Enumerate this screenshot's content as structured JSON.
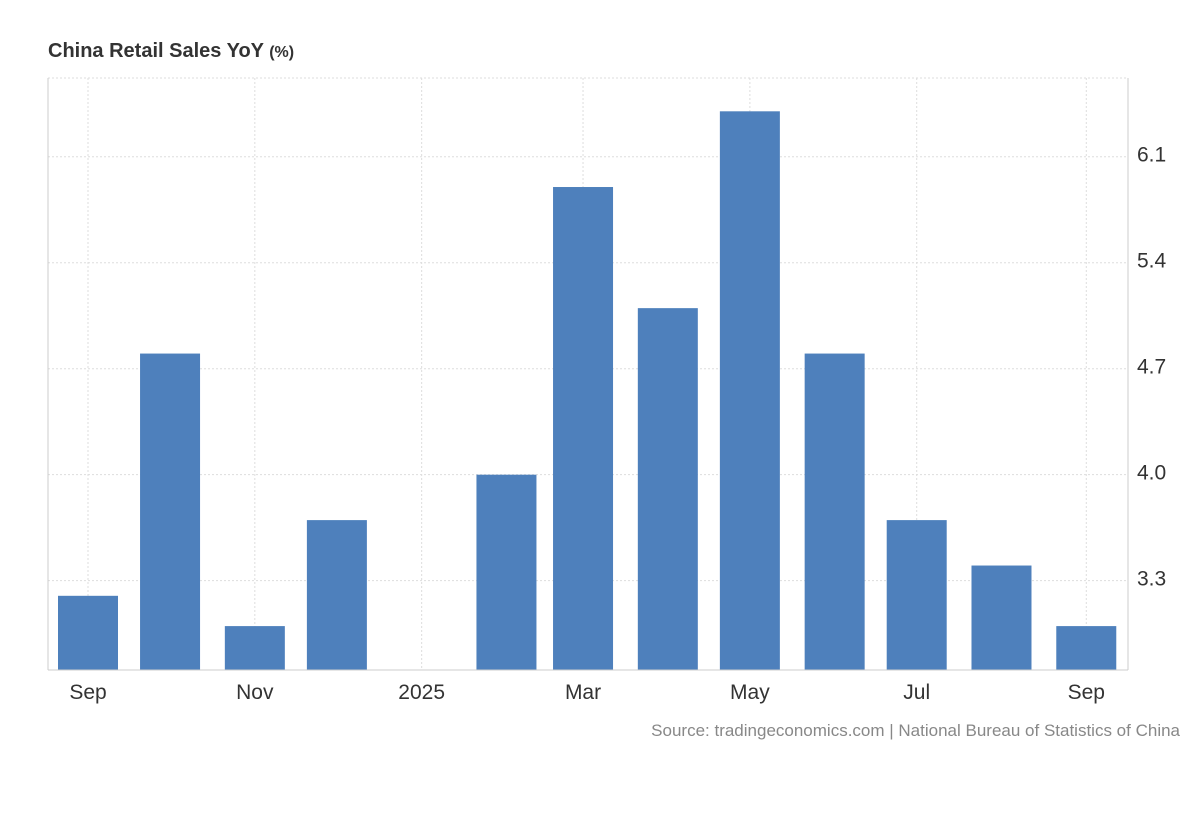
{
  "chart_data": {
    "type": "bar",
    "title": "China Retail Sales YoY",
    "unit": "(%)",
    "xlabel": "",
    "ylabel": "",
    "ylim": [
      2.71,
      6.62
    ],
    "yticks": [
      "3.3",
      "4.0",
      "4.7",
      "5.4",
      "6.1"
    ],
    "xticks": [
      {
        "label": "Sep",
        "date": "2024-09-01"
      },
      {
        "label": "Nov",
        "date": "2024-11-01"
      },
      {
        "label": "2025",
        "date": "2025-01-01"
      },
      {
        "label": "Mar",
        "date": "2025-03-01"
      },
      {
        "label": "May",
        "date": "2025-05-01"
      },
      {
        "label": "Jul",
        "date": "2025-07-01"
      },
      {
        "label": "Sep",
        "date": "2025-09-01"
      }
    ],
    "categories": [
      "2024-09",
      "2024-10",
      "2024-11",
      "2024-12",
      "2025-02",
      "2025-03",
      "2025-04",
      "2025-05",
      "2025-06",
      "2025-07",
      "2025-08",
      "2025-09"
    ],
    "dates": [
      "2024-09-01",
      "2024-10-01",
      "2024-11-01",
      "2024-12-01",
      "2025-02-01",
      "2025-03-01",
      "2025-04-01",
      "2025-05-01",
      "2025-06-01",
      "2025-07-01",
      "2025-08-01",
      "2025-09-01"
    ],
    "values": [
      3.2,
      4.8,
      3.0,
      3.7,
      4.0,
      5.9,
      5.1,
      6.4,
      4.8,
      3.7,
      3.4,
      3.0
    ],
    "bar_color": "#4e80bc",
    "grid": true,
    "legend": "none"
  },
  "source": "Source: tradingeconomics.com | National Bureau of Statistics of China"
}
